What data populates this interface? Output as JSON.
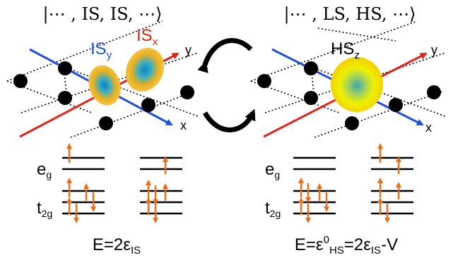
{
  "colors": {
    "blue": "#1f4fe0",
    "red": "#e02417",
    "orange": "#f26b10",
    "black": "#000000",
    "orbital_outer": "#f0b000",
    "orbital_inner": "#1aa0c8"
  },
  "left_state": {
    "ket": "|⋯ , IS, IS, ⋯⟩",
    "orbital_label_y": "IS",
    "orbital_label_y_sub": "y",
    "orbital_label_x": "IS",
    "orbital_label_x_sub": "x",
    "axis_y": "y",
    "axis_x": "x",
    "eg_main": "e",
    "eg_sub": "g",
    "t2g_main": "t",
    "t2g_sub": "2g",
    "energy": "E=2ε",
    "energy_sub": "IS"
  },
  "right_state": {
    "ket": "|⋯ , LS, HS, ⋯⟩",
    "orbital_label": "HS",
    "orbital_label_sub": "z",
    "axis_y": "y",
    "axis_x": "x",
    "eg_main": "e",
    "eg_sub": "g",
    "t2g_main": "t",
    "t2g_sub": "2g",
    "energy_a": "E=ε",
    "energy_sup": "0",
    "energy_sub1": "HS",
    "energy_b": "=2ε",
    "energy_sub2": "IS",
    "energy_c": "-V"
  }
}
